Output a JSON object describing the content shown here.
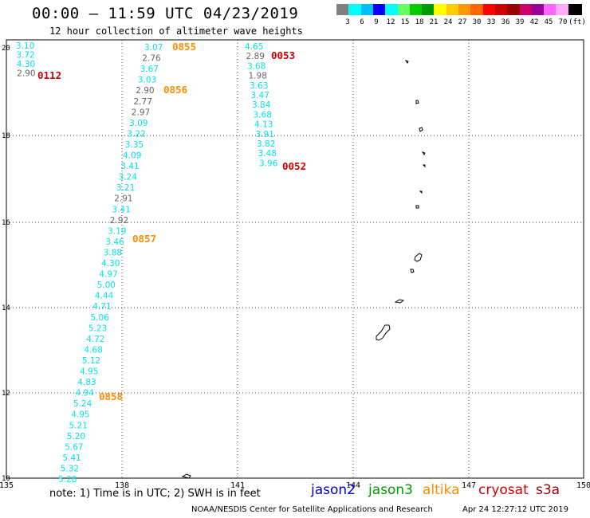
{
  "header": {
    "title": "00:00 – 11:59 UTC 04/23/2019",
    "subtitle": "12 hour collection of altimeter wave heights"
  },
  "colorbar": {
    "colors": [
      "#808080",
      "#00ffff",
      "#00bfff",
      "#0000ff",
      "#00ffff",
      "#66ff66",
      "#00cc00",
      "#009900",
      "#ffff00",
      "#ffcc00",
      "#ff9900",
      "#ff6600",
      "#ff0000",
      "#cc0000",
      "#990000",
      "#cc0066",
      "#990099",
      "#ff66ff",
      "#ffaaff",
      "#000000"
    ],
    "labels": [
      "3",
      "6",
      "9",
      "12",
      "15",
      "18",
      "21",
      "24",
      "27",
      "30",
      "33",
      "36",
      "39",
      "42",
      "45",
      "70",
      "(ft)"
    ]
  },
  "axes": {
    "lon_ticks": [
      "135",
      "138",
      "141",
      "144",
      "147",
      "150"
    ],
    "lat_ticks": [
      "10",
      "12",
      "14",
      "16",
      "18",
      "20"
    ]
  },
  "tracks": [
    {
      "id": "t1",
      "color": "#ff8c00",
      "label": "0855",
      "points": [
        [
          "3.07",
          "#00e5e5"
        ],
        [
          "2.76",
          "#666666"
        ],
        [
          "3.67",
          "#00e5e5"
        ],
        [
          "3.03",
          "#00e5e5"
        ],
        [
          "2.90",
          "#666666"
        ],
        [
          "2.77",
          "#666666"
        ],
        [
          "2.97",
          "#666666"
        ],
        [
          "3.09",
          "#00e5e5"
        ],
        [
          "3.22",
          "#00e5e5"
        ],
        [
          "3.35",
          "#00e5e5"
        ],
        [
          "4.09",
          "#00e5e5"
        ],
        [
          "3.41",
          "#00e5e5"
        ],
        [
          "3.24",
          "#00e5e5"
        ],
        [
          "3.21",
          "#00e5e5"
        ],
        [
          "2.91",
          "#666666"
        ],
        [
          "3.41",
          "#00e5e5"
        ],
        [
          "2.92",
          "#666666"
        ],
        [
          "3.19",
          "#00e5e5"
        ],
        [
          "3.46",
          "#00e5e5"
        ],
        [
          "3.88",
          "#00e5e5"
        ],
        [
          "4.30",
          "#00e5e5"
        ],
        [
          "4.97",
          "#00e5e5"
        ],
        [
          "5.00",
          "#00e5e5"
        ],
        [
          "4.44",
          "#00e5e5"
        ],
        [
          "4.71",
          "#00e5e5"
        ],
        [
          "5.06",
          "#00e5e5"
        ],
        [
          "5.23",
          "#00e5e5"
        ],
        [
          "4.72",
          "#00e5e5"
        ],
        [
          "4.68",
          "#00e5e5"
        ],
        [
          "5.12",
          "#00e5e5"
        ],
        [
          "4.95",
          "#00e5e5"
        ],
        [
          "4.83",
          "#00e5e5"
        ],
        [
          "4.94",
          "#00e5e5"
        ],
        [
          "5.24",
          "#00e5e5"
        ],
        [
          "4.95",
          "#00e5e5"
        ],
        [
          "5.21",
          "#00e5e5"
        ],
        [
          "5.20",
          "#00e5e5"
        ],
        [
          "5.67",
          "#00e5e5"
        ],
        [
          "5.41",
          "#00e5e5"
        ],
        [
          "5.32",
          "#00e5e5"
        ],
        [
          "5.28",
          "#00e5e5"
        ]
      ]
    },
    {
      "id": "t2",
      "color": "#cc0000",
      "label": "0112",
      "points": [
        [
          "3.10",
          "#00e5e5"
        ],
        [
          "3.72",
          "#00e5e5"
        ],
        [
          "4.30",
          "#00e5e5"
        ],
        [
          "2.90",
          "#666666"
        ]
      ]
    },
    {
      "id": "t3",
      "color": "#cc0000",
      "label": "0053",
      "points": [
        [
          "4.65",
          "#00e5e5"
        ],
        [
          "2.89",
          "#666666"
        ],
        [
          "3.68",
          "#00e5e5"
        ],
        [
          "1.98",
          "#666666"
        ],
        [
          "3.63",
          "#00e5e5"
        ],
        [
          "3.47",
          "#00e5e5"
        ],
        [
          "3.84",
          "#00e5e5"
        ],
        [
          "3.68",
          "#00e5e5"
        ],
        [
          "4.13",
          "#00e5e5"
        ],
        [
          "3.91",
          "#00e5e5"
        ],
        [
          "3.82",
          "#00e5e5"
        ],
        [
          "3.48",
          "#00e5e5"
        ],
        [
          "3.96",
          "#00e5e5"
        ]
      ]
    }
  ],
  "time_labels": [
    {
      "text": "0855",
      "color": "#ff8c00"
    },
    {
      "text": "0856",
      "color": "#ff8c00"
    },
    {
      "text": "0857",
      "color": "#ff8c00"
    },
    {
      "text": "0858",
      "color": "#ff8c00"
    },
    {
      "text": "0112",
      "color": "#cc0000"
    },
    {
      "text": "0053",
      "color": "#cc0000"
    },
    {
      "text": "0052",
      "color": "#cc0000"
    }
  ],
  "footer": {
    "note": "note: 1) Time is in UTC; 2) SWH is in feet",
    "credit": "NOAA/NESDIS Center for Satellite Applications and Research",
    "stamp": "Apr 24 12:27:12 UTC 2019",
    "satellites": [
      {
        "name": "jason2",
        "color": "#0000cc"
      },
      {
        "name": "jason3",
        "color": "#009900"
      },
      {
        "name": "altika",
        "color": "#ff8c00"
      },
      {
        "name": "cryosat",
        "color": "#cc0000"
      },
      {
        "name": "s3a",
        "color": "#990000"
      }
    ]
  }
}
